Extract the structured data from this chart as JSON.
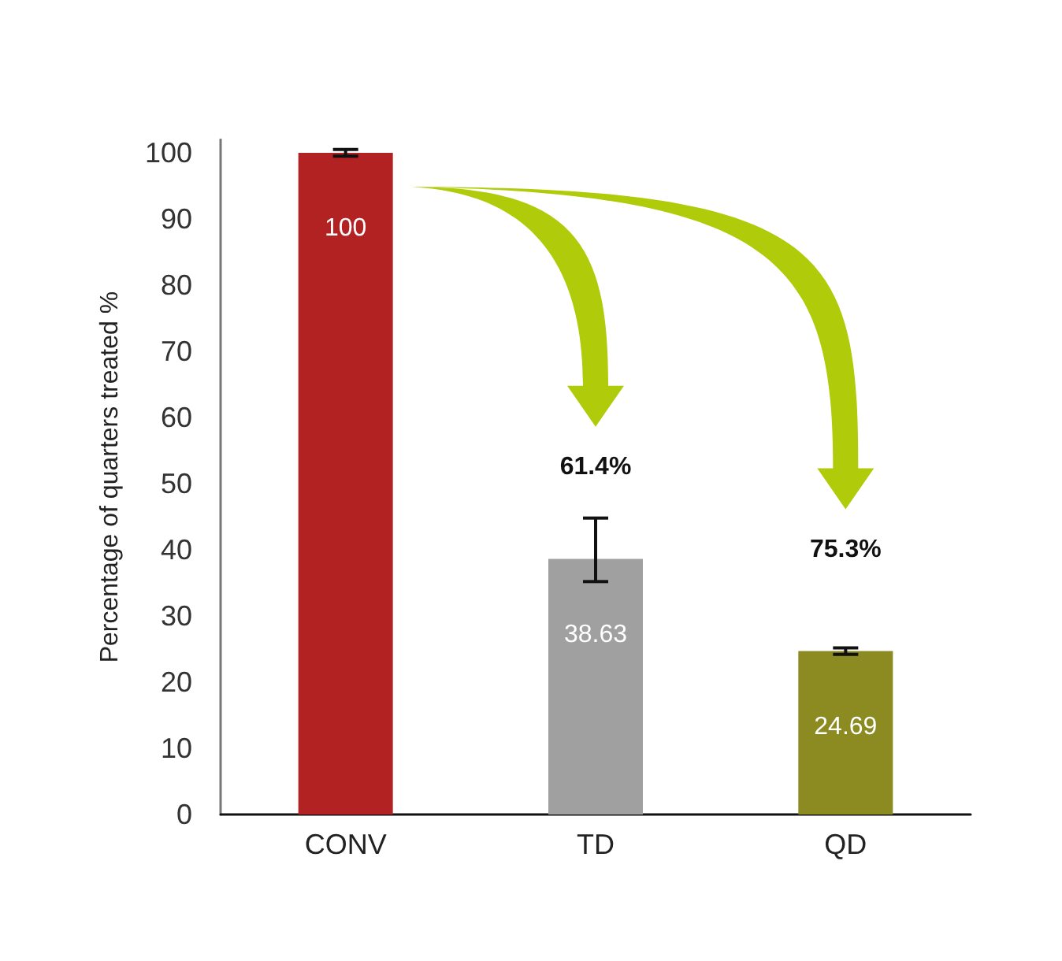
{
  "chart_data": {
    "type": "bar",
    "ylabel": "Percentage of quarters treated %",
    "categories": [
      "CONV",
      "TD",
      "QD"
    ],
    "values": [
      100,
      38.63,
      24.69
    ],
    "colors": [
      "#b22222",
      "#a0a0a0",
      "#8b8b22"
    ],
    "errors": [
      0.5,
      [
        35.2,
        44.8
      ],
      0.5
    ],
    "data_labels": true,
    "ylim": [
      0,
      102
    ],
    "yticks": [
      0,
      10,
      20,
      30,
      40,
      50,
      60,
      70,
      80,
      90,
      100
    ],
    "grid": false,
    "annotations": [
      "61.4%",
      "75.3%"
    ]
  }
}
